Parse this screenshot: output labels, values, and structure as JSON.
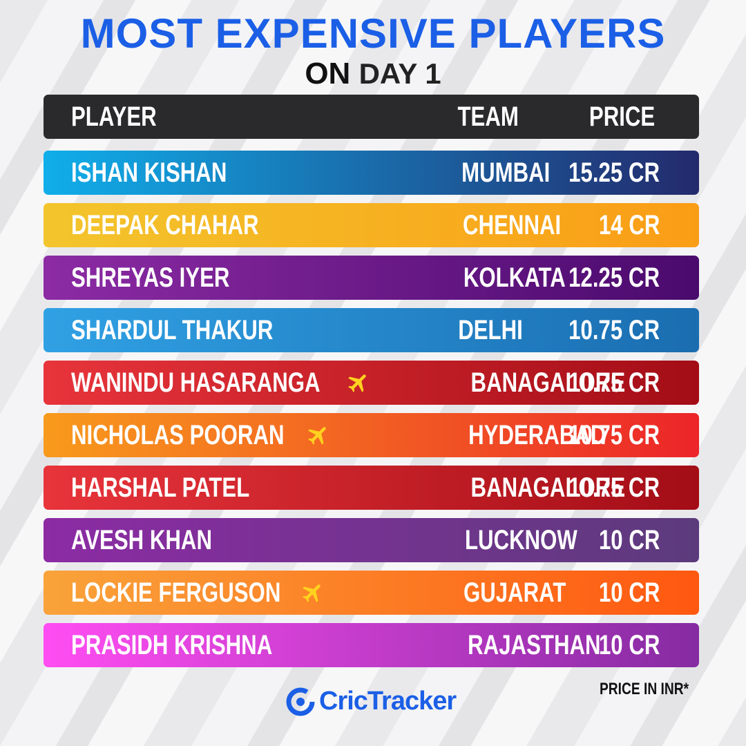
{
  "header": {
    "title": "MOST EXPENSIVE PLAYERS",
    "subtitle_plain": "ON",
    "subtitle_bold": "DAY 1"
  },
  "table": {
    "columns": [
      "PLAYER",
      "TEAM",
      "PRICE"
    ],
    "rows": [
      [
        "ISHAN KISHAN",
        "MUMBAI",
        "15.25 CR"
      ],
      [
        "DEEPAK CHAHAR",
        "CHENNAI",
        "14 CR"
      ],
      [
        "SHREYAS IYER",
        "KOLKATA",
        "12.25 CR"
      ],
      [
        "SHARDUL THAKUR",
        "DELHI",
        "10.75 CR"
      ],
      [
        "WANINDU HASARANGA",
        "BANAGALORE",
        "10.75 CR"
      ],
      [
        "NICHOLAS POORAN",
        "HYDERABAD",
        "10.75 CR"
      ],
      [
        "HARSHAL PATEL",
        "BANAGALORE",
        "10.75 CR"
      ],
      [
        "AVESH KHAN",
        "LUCKNOW",
        "10 CR"
      ],
      [
        "LOCKIE FERGUSON",
        "GUJARAT",
        "10 CR"
      ],
      [
        "PRASIDH KRISHNA",
        "RAJASTHAN",
        "10 CR"
      ]
    ]
  },
  "footnote": "PRICE IN INR*",
  "brand": "CricTracker"
}
